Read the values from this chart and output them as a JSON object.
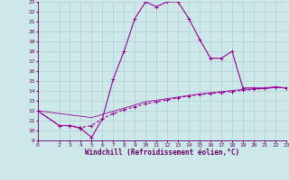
{
  "xlabel": "Windchill (Refroidissement éolien,°C)",
  "xlim": [
    0,
    23
  ],
  "ylim": [
    9,
    23
  ],
  "yticks": [
    9,
    10,
    11,
    12,
    13,
    14,
    15,
    16,
    17,
    18,
    19,
    20,
    21,
    22,
    23
  ],
  "xticks": [
    0,
    2,
    3,
    4,
    5,
    6,
    7,
    8,
    9,
    10,
    11,
    12,
    13,
    14,
    15,
    16,
    17,
    18,
    19,
    20,
    21,
    22,
    23
  ],
  "bg_color": "#cce8e8",
  "grid_color": "#aacccc",
  "line_color": "#990099",
  "curve1_x": [
    0,
    2,
    3,
    4,
    5,
    6,
    7,
    8,
    9,
    10,
    11,
    12,
    13,
    14,
    15,
    16,
    17,
    18,
    19,
    20,
    21,
    22,
    23
  ],
  "curve1_y": [
    12,
    10.5,
    10.5,
    10.2,
    9.3,
    11.2,
    15.2,
    18.0,
    21.3,
    23.0,
    22.5,
    23.0,
    23.0,
    21.3,
    19.2,
    17.3,
    17.3,
    18.0,
    14.3,
    14.3,
    14.3,
    14.4,
    14.3
  ],
  "curve2_x": [
    0,
    2,
    3,
    4,
    5,
    6,
    7,
    8,
    9,
    10,
    11,
    12,
    13,
    14,
    15,
    16,
    17,
    18,
    19,
    20,
    21,
    22,
    23
  ],
  "curve2_y": [
    12.0,
    10.5,
    10.5,
    10.3,
    10.5,
    11.2,
    11.7,
    12.1,
    12.4,
    12.7,
    12.9,
    13.1,
    13.3,
    13.5,
    13.6,
    13.75,
    13.85,
    13.95,
    14.05,
    14.15,
    14.25,
    14.35,
    14.3
  ],
  "curve3_x": [
    0,
    5,
    10,
    15,
    19,
    20,
    21,
    22,
    23
  ],
  "curve3_y": [
    12.0,
    11.3,
    12.9,
    13.7,
    14.15,
    14.2,
    14.25,
    14.35,
    14.3
  ],
  "marker": "+",
  "marker_size": 3,
  "linewidth": 0.8,
  "font_color": "#660066",
  "tick_fontsize": 4.5,
  "label_fontsize": 5.5
}
